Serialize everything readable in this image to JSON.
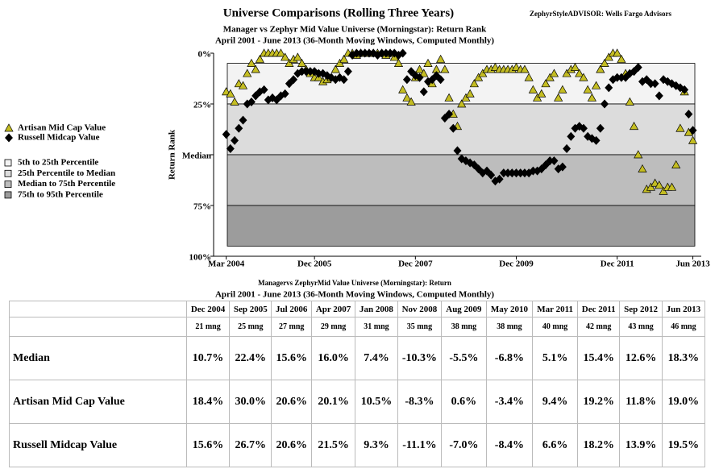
{
  "chart_data": {
    "type": "scatter",
    "title": "Universe Comparisons (Rolling Three Years)",
    "source": "ZephyrStyleADVISOR: Wells Fargo Advisors",
    "subtitle": [
      "Manager vs Zephyr Mid Value Universe (Morningstar): Return Rank",
      "April 2001 - June 2013 (36-Month Moving Windows, Computed Monthly)"
    ],
    "y_label": "Return Rank",
    "x": [
      "2004-03",
      "2004-04",
      "2004-05",
      "2004-06",
      "2004-07",
      "2004-08",
      "2004-09",
      "2004-10",
      "2004-11",
      "2004-12",
      "2005-01",
      "2005-02",
      "2005-03",
      "2005-04",
      "2005-05",
      "2005-06",
      "2005-07",
      "2005-08",
      "2005-09",
      "2005-10",
      "2005-11",
      "2005-12",
      "2006-01",
      "2006-02",
      "2006-03",
      "2006-04",
      "2006-05",
      "2006-06",
      "2006-07",
      "2006-08",
      "2006-09",
      "2006-10",
      "2006-11",
      "2006-12",
      "2007-01",
      "2007-02",
      "2007-03",
      "2007-04",
      "2007-05",
      "2007-06",
      "2007-07",
      "2007-08",
      "2007-09",
      "2007-10",
      "2007-11",
      "2007-12",
      "2008-01",
      "2008-02",
      "2008-03",
      "2008-04",
      "2008-05",
      "2008-06",
      "2008-07",
      "2008-08",
      "2008-09",
      "2008-10",
      "2008-11",
      "2008-12",
      "2009-01",
      "2009-02",
      "2009-03",
      "2009-04",
      "2009-05",
      "2009-06",
      "2009-07",
      "2009-08",
      "2009-09",
      "2009-10",
      "2009-11",
      "2009-12",
      "2010-01",
      "2010-02",
      "2010-03",
      "2010-04",
      "2010-05",
      "2010-06",
      "2010-07",
      "2010-08",
      "2010-09",
      "2010-10",
      "2010-11",
      "2010-12",
      "2011-01",
      "2011-02",
      "2011-03",
      "2011-04",
      "2011-05",
      "2011-06",
      "2011-07",
      "2011-08",
      "2011-09",
      "2011-10",
      "2011-11",
      "2011-12",
      "2012-01",
      "2012-02",
      "2012-03",
      "2012-04",
      "2012-05",
      "2012-06",
      "2012-07",
      "2012-08",
      "2012-09",
      "2012-10",
      "2012-11",
      "2012-12",
      "2013-01",
      "2013-02",
      "2013-03",
      "2013-04",
      "2013-05",
      "2013-06"
    ],
    "xlim": [
      "2003-12",
      "2013-08"
    ],
    "xticks": [
      {
        "value": "2004-03",
        "label": "Mar 2004"
      },
      {
        "value": "2005-12",
        "label": "Dec 2005"
      },
      {
        "value": "2007-12",
        "label": "Dec 2007"
      },
      {
        "value": "2009-12",
        "label": "Dec 2009"
      },
      {
        "value": "2011-12",
        "label": "Dec 2011"
      },
      {
        "value": "2013-06",
        "label": "Jun 2013"
      }
    ],
    "ylim": [
      0,
      100
    ],
    "y_reversed": true,
    "yticks": [
      {
        "value": 0,
        "label": "0%"
      },
      {
        "value": 25,
        "label": "25%"
      },
      {
        "value": 50,
        "label": "Median"
      },
      {
        "value": 75,
        "label": "75%"
      },
      {
        "value": 100,
        "label": "100%"
      }
    ],
    "bands": [
      {
        "name": "5th to 25th Percentile",
        "from": 5,
        "to": 25,
        "color": "#f3f3f3"
      },
      {
        "name": "25th Percentile to Median",
        "from": 25,
        "to": 50,
        "color": "#dcdcdc"
      },
      {
        "name": "Median to 75th Percentile",
        "from": 50,
        "to": 75,
        "color": "#bdbdbd"
      },
      {
        "name": "75th to 95th Percentile",
        "from": 75,
        "to": 95,
        "color": "#9c9c9c"
      }
    ],
    "series": [
      {
        "name": "Artisan Mid Cap Value",
        "marker": "triangle",
        "color": "#c4bd22",
        "values": [
          19,
          20,
          24,
          15,
          16,
          10,
          5,
          8,
          3,
          0,
          0,
          0,
          0,
          0,
          2,
          5,
          3,
          2,
          5,
          8,
          10,
          12,
          12,
          14,
          13,
          12,
          8,
          5,
          3,
          0,
          0,
          1,
          0,
          0,
          0,
          0,
          0,
          0,
          1,
          0,
          2,
          5,
          18,
          22,
          24,
          12,
          8,
          10,
          5,
          15,
          8,
          3,
          8,
          22,
          30,
          36,
          25,
          22,
          20,
          15,
          12,
          10,
          8,
          8,
          7,
          8,
          8,
          8,
          8,
          7,
          8,
          8,
          12,
          18,
          22,
          20,
          15,
          12,
          10,
          22,
          18,
          10,
          8,
          7,
          10,
          12,
          18,
          22,
          16,
          8,
          5,
          2,
          0,
          0,
          3,
          10,
          24,
          36,
          50,
          57,
          67,
          66,
          64,
          65,
          68,
          66,
          66,
          55,
          37,
          19,
          39,
          43
        ]
      },
      {
        "name": "Russell Midcap Value",
        "marker": "diamond",
        "color": "#000000",
        "values": [
          40,
          47,
          43,
          37,
          33,
          25,
          24,
          21,
          19,
          18,
          23,
          22,
          23,
          21,
          20,
          15,
          13,
          10,
          9,
          9,
          9,
          9,
          10,
          10,
          11,
          12,
          13,
          12,
          13,
          9,
          1,
          0,
          0,
          0,
          0,
          0,
          1,
          0,
          0,
          0,
          0,
          1,
          0,
          13,
          9,
          11,
          12,
          19,
          14,
          13,
          11,
          13,
          32,
          30,
          37,
          48,
          52,
          53,
          54,
          55,
          57,
          59,
          58,
          60,
          63,
          62,
          59,
          59,
          59,
          59,
          59,
          59,
          59,
          58,
          58,
          57,
          55,
          53,
          53,
          57,
          56,
          47,
          41,
          37,
          36,
          37,
          41,
          42,
          43,
          37,
          25,
          17,
          13,
          12,
          12,
          12,
          10,
          9,
          7,
          14,
          13,
          15,
          15,
          21,
          13,
          14,
          15,
          16,
          17,
          18,
          30,
          38
        ]
      }
    ]
  },
  "table": {
    "title": [
      "Managervs ZephyrMid Value Universe (Morningstar): Return",
      "April 2001 - June 2013 (36-Month Moving Windows, Computed Monthly)"
    ],
    "columns": [
      "Dec 2004",
      "Sep 2005",
      "Jul 2006",
      "Apr 2007",
      "Jan 2008",
      "Nov 2008",
      "Aug 2009",
      "May 2010",
      "Mar 2011",
      "Dec 2011",
      "Sep 2012",
      "Jun 2013"
    ],
    "windows": [
      "21 mng",
      "25 mng",
      "27 mng",
      "29 mng",
      "31 mng",
      "35 mng",
      "38 mng",
      "38 mng",
      "40 mng",
      "42 mng",
      "43 mng",
      "46 mng"
    ],
    "rows": [
      {
        "label": "Median",
        "values": [
          "10.7%",
          "22.4%",
          "15.6%",
          "16.0%",
          "7.4%",
          "-10.3%",
          "-5.5%",
          "-6.8%",
          "5.1%",
          "15.4%",
          "12.6%",
          "18.3%"
        ]
      },
      {
        "label": "Artisan Mid Cap Value",
        "values": [
          "18.4%",
          "30.0%",
          "20.6%",
          "20.1%",
          "10.5%",
          "-8.3%",
          "0.6%",
          "-3.4%",
          "9.4%",
          "19.2%",
          "11.8%",
          "19.0%"
        ]
      },
      {
        "label": "Russell Midcap Value",
        "values": [
          "15.6%",
          "26.7%",
          "20.6%",
          "21.5%",
          "9.3%",
          "-11.1%",
          "-7.0%",
          "-8.4%",
          "6.6%",
          "18.2%",
          "13.9%",
          "19.5%"
        ]
      }
    ]
  }
}
